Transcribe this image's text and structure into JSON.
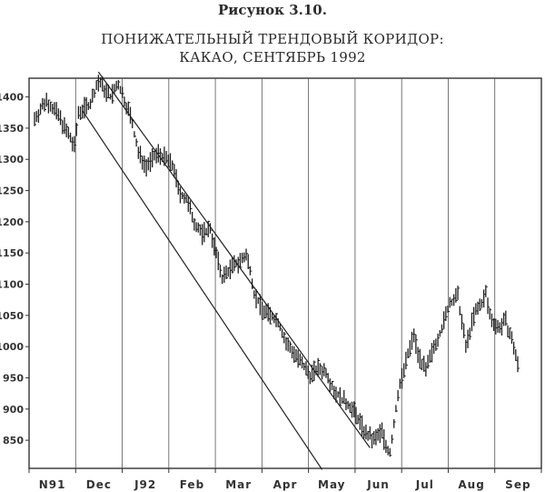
{
  "figure_label": "Рисунок 3.10.",
  "title_line1": "ПОНИЖАТЕЛЬНЫЙ ТРЕНДОВЫЙ КОРИДОР:",
  "title_line2": "КАКАО, СЕНТЯБРЬ 1992",
  "chart_data": {
    "type": "bar",
    "subtype": "ohlc-bars",
    "title": "ПОНИЖАТЕЛЬНЫЙ ТРЕНДОВЫЙ КОРИДОР: КАКАО, СЕНТЯБРЬ 1992",
    "xlabel": "",
    "ylabel": "",
    "ylim": [
      805,
      1430
    ],
    "y_ticks": [
      850,
      900,
      950,
      1000,
      1050,
      1100,
      1150,
      1200,
      1250,
      1300,
      1350,
      1400
    ],
    "x_ticks": [
      "N91",
      "Dec",
      "J92",
      "Feb",
      "Mar",
      "Apr",
      "May",
      "Jun",
      "Jul",
      "Aug",
      "Sep"
    ],
    "grid": true,
    "anchors": [
      {
        "t": 0,
        "v": 1365
      },
      {
        "t": 3,
        "v": 1395
      },
      {
        "t": 6,
        "v": 1370
      },
      {
        "t": 10,
        "v": 1320
      },
      {
        "t": 11,
        "v": 1375
      },
      {
        "t": 14,
        "v": 1390
      },
      {
        "t": 16,
        "v": 1425
      },
      {
        "t": 19,
        "v": 1400
      },
      {
        "t": 21,
        "v": 1420
      },
      {
        "t": 24,
        "v": 1370
      },
      {
        "t": 26,
        "v": 1310
      },
      {
        "t": 28,
        "v": 1290
      },
      {
        "t": 31,
        "v": 1310
      },
      {
        "t": 33,
        "v": 1300
      },
      {
        "t": 35,
        "v": 1285
      },
      {
        "t": 36,
        "v": 1250
      },
      {
        "t": 38,
        "v": 1235
      },
      {
        "t": 40,
        "v": 1200
      },
      {
        "t": 42,
        "v": 1180
      },
      {
        "t": 44,
        "v": 1190
      },
      {
        "t": 45,
        "v": 1160
      },
      {
        "t": 47,
        "v": 1110
      },
      {
        "t": 49,
        "v": 1125
      },
      {
        "t": 51,
        "v": 1135
      },
      {
        "t": 53,
        "v": 1145
      },
      {
        "t": 54,
        "v": 1125
      },
      {
        "t": 55,
        "v": 1085
      },
      {
        "t": 57,
        "v": 1060
      },
      {
        "t": 59,
        "v": 1050
      },
      {
        "t": 61,
        "v": 1040
      },
      {
        "t": 63,
        "v": 1005
      },
      {
        "t": 65,
        "v": 990
      },
      {
        "t": 67,
        "v": 970
      },
      {
        "t": 69,
        "v": 955
      },
      {
        "t": 71,
        "v": 965
      },
      {
        "t": 73,
        "v": 960
      },
      {
        "t": 75,
        "v": 930
      },
      {
        "t": 77,
        "v": 915
      },
      {
        "t": 79,
        "v": 905
      },
      {
        "t": 81,
        "v": 885
      },
      {
        "t": 83,
        "v": 860
      },
      {
        "t": 85,
        "v": 850
      },
      {
        "t": 87,
        "v": 865
      },
      {
        "t": 88,
        "v": 840
      },
      {
        "t": 89,
        "v": 830
      },
      {
        "t": 90,
        "v": 875
      },
      {
        "t": 91,
        "v": 925
      },
      {
        "t": 93,
        "v": 975
      },
      {
        "t": 95,
        "v": 1020
      },
      {
        "t": 96,
        "v": 990
      },
      {
        "t": 98,
        "v": 960
      },
      {
        "t": 100,
        "v": 1000
      },
      {
        "t": 102,
        "v": 1030
      },
      {
        "t": 104,
        "v": 1070
      },
      {
        "t": 106,
        "v": 1080
      },
      {
        "t": 107,
        "v": 1040
      },
      {
        "t": 108,
        "v": 1000
      },
      {
        "t": 110,
        "v": 1050
      },
      {
        "t": 112,
        "v": 1070
      },
      {
        "t": 113,
        "v": 1085
      },
      {
        "t": 114,
        "v": 1050
      },
      {
        "t": 116,
        "v": 1030
      },
      {
        "t": 118,
        "v": 1040
      },
      {
        "t": 120,
        "v": 1000
      },
      {
        "t": 121,
        "v": 970
      }
    ],
    "channel": {
      "upper": [
        {
          "t": 16,
          "v": 1440
        },
        {
          "t": 84,
          "v": 838
        }
      ],
      "lower": [
        {
          "t": 12,
          "v": 1378
        },
        {
          "t": 72,
          "v": 803
        }
      ]
    }
  }
}
